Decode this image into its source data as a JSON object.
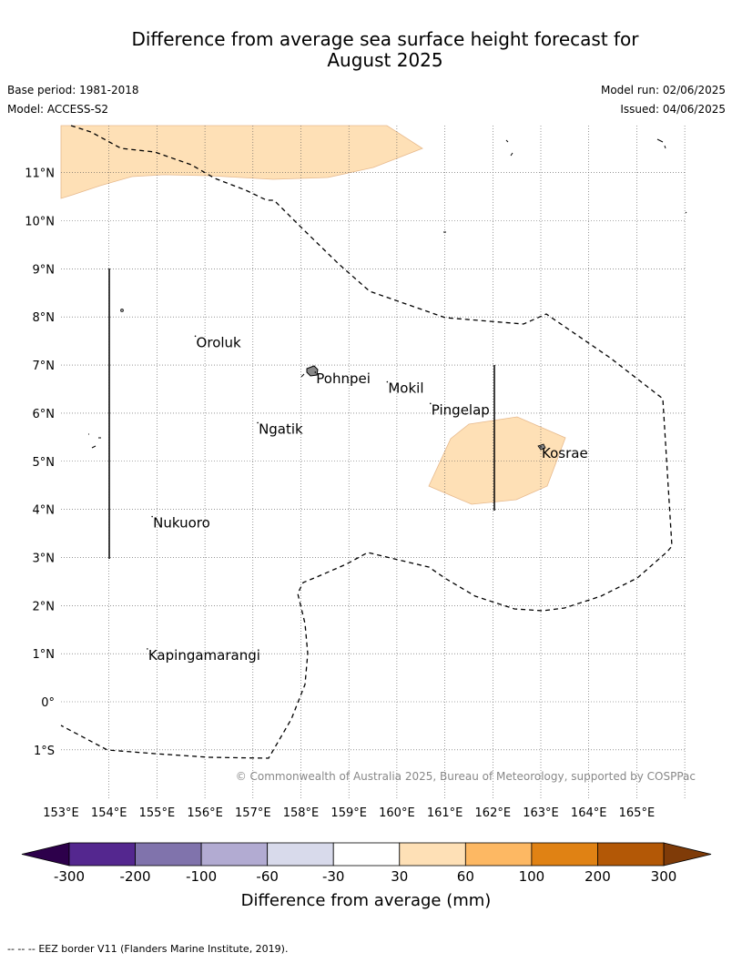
{
  "header": {
    "title_line1": "Difference from average sea surface height forecast for",
    "title_line2": "August 2025",
    "base_period": "Base period: 1981-2018",
    "model": "Model: ACCESS-S2",
    "model_run": "Model run: 02/06/2025",
    "issued": "Issued: 04/06/2025"
  },
  "map": {
    "lon_range": [
      153,
      166
    ],
    "lat_range": [
      -2,
      12
    ],
    "lon_ticks": [
      "153°E",
      "154°E",
      "155°E",
      "156°E",
      "157°E",
      "158°E",
      "159°E",
      "160°E",
      "161°E",
      "162°E",
      "163°E",
      "164°E",
      "165°E"
    ],
    "lat_ticks": [
      "1°S",
      "0°",
      "1°N",
      "2°N",
      "3°N",
      "4°N",
      "5°N",
      "6°N",
      "7°N",
      "8°N",
      "9°N",
      "10°N",
      "11°N"
    ],
    "places": [
      {
        "name": "Oroluk",
        "lon": 155.8,
        "lat": 7.6
      },
      {
        "name": "Pohnpei",
        "lon": 158.3,
        "lat": 6.85
      },
      {
        "name": "Mokil",
        "lon": 159.8,
        "lat": 6.65
      },
      {
        "name": "Pingelap",
        "lon": 160.7,
        "lat": 6.2
      },
      {
        "name": "Ngatik",
        "lon": 157.1,
        "lat": 5.8
      },
      {
        "name": "Kosrae",
        "lon": 163.0,
        "lat": 5.3
      },
      {
        "name": "Nukuoro",
        "lon": 154.9,
        "lat": 3.85
      },
      {
        "name": "Kapingamarangi",
        "lon": 154.8,
        "lat": 1.1
      }
    ],
    "credit": "© Commonwealth of Australia 2025, Bureau of Meteorology, supported by COSPPac"
  },
  "colorbar": {
    "ticks": [
      "-300",
      "-200",
      "-100",
      "-60",
      "-30",
      "30",
      "60",
      "100",
      "200",
      "300"
    ],
    "colors": [
      "#54278f",
      "#8073ac",
      "#b2abd2",
      "#d8daeb",
      "#ffffff",
      "#fee0b6",
      "#fdb863",
      "#e08214",
      "#b35806"
    ],
    "under_color": "#2d004b",
    "over_color": "#7f3b08",
    "label": "Difference from average (mm)"
  },
  "footer": {
    "legend_symbol": "-- -- --",
    "text": "EEZ border V11 (Flanders Marine Institute, 2019)."
  }
}
